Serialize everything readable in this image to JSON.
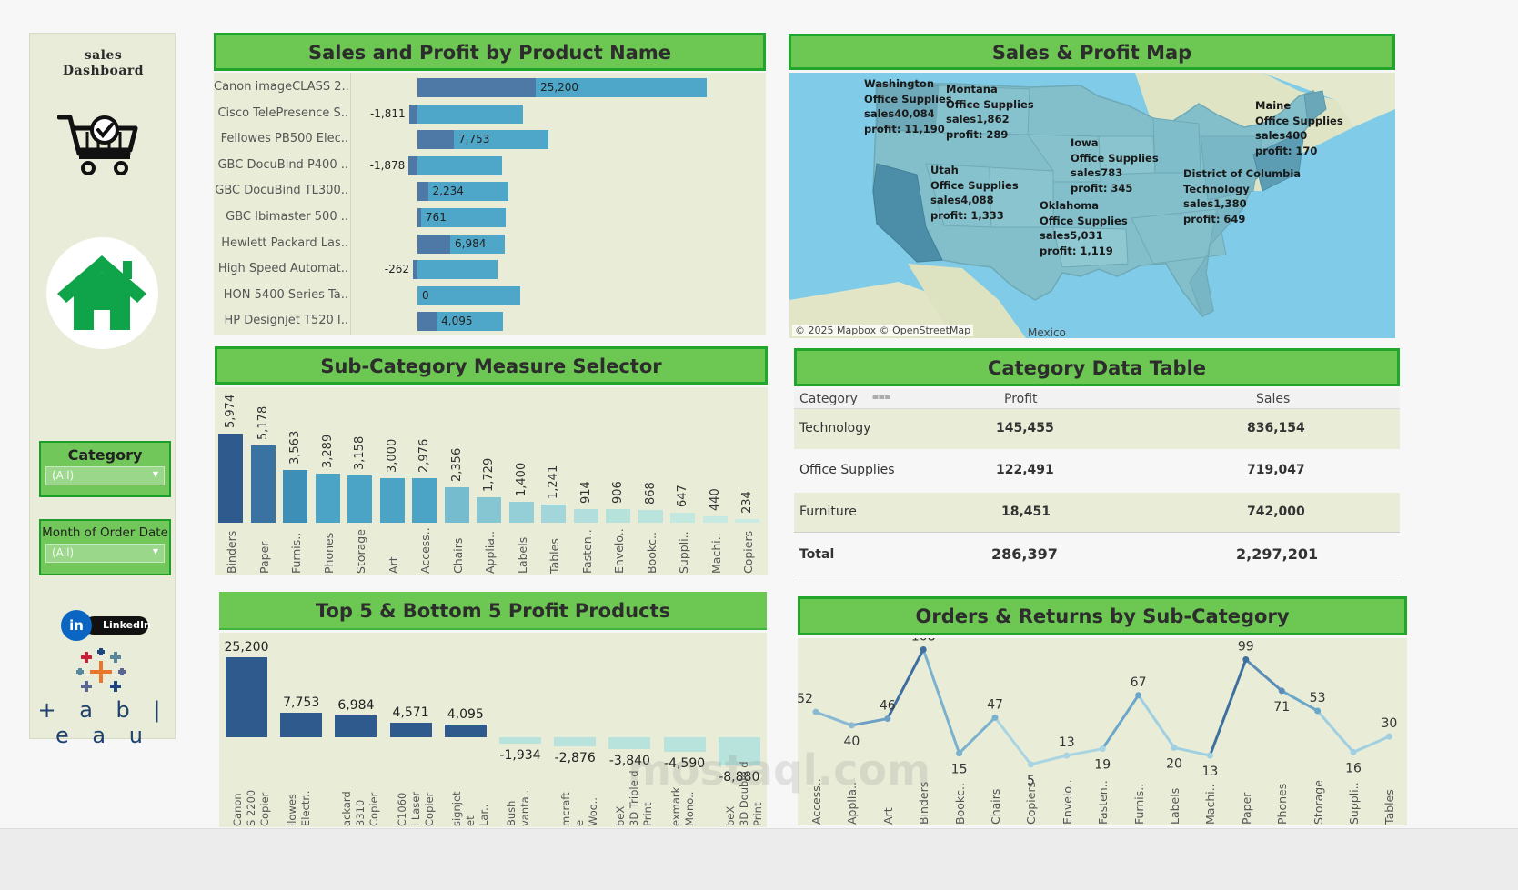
{
  "sidebar": {
    "title_line1": "sales",
    "title_line2": "Dashboard",
    "filters": [
      {
        "label": "Category",
        "value": "(All)"
      },
      {
        "label": "Month of Order Date",
        "value": "(All)"
      }
    ],
    "linkedin_icon": "in",
    "linkedin_label": "LinkedIn",
    "tableau_label": "+ a b | e a u"
  },
  "panels": {
    "sales_profit_title": "Sales and Profit by Product Name",
    "map_title": "Sales & Profit Map",
    "subcat_title": "Sub-Category Measure Selector",
    "category_table_title": "Category Data Table",
    "top_bottom_title": "Top 5 & Bottom 5 Profit Products",
    "orders_returns_title": "Orders & Returns by Sub-Category"
  },
  "colors": {
    "title_green": "#6cc852",
    "title_border": "#22a52b",
    "panel_bg": "#e9edd8",
    "bar_dark": "#2e5a8e",
    "bar_teal": "#4ea6c8",
    "bar_light": "#b6e2dc"
  },
  "chart_data": [
    {
      "type": "bar",
      "title": "Sales and Profit by Product Name",
      "categories": [
        "Canon imageCLASS 2..",
        "Cisco TelePresence S..",
        "Fellowes PB500 Elec..",
        "GBC DocuBind P400 ..",
        "GBC DocuBind TL300..",
        "GBC Ibimaster 500 ..",
        "Hewlett Packard Las..",
        "High Speed Automat..",
        "HON 5400 Series Ta..",
        "HP Designjet T520 I.."
      ],
      "series": [
        {
          "values": [
            61600,
            22500,
            27800,
            18000,
            19400,
            18700,
            18500,
            17000,
            21800,
            18300
          ]
        },
        {
          "values": [
            25200,
            -1811,
            7753,
            -1878,
            2234,
            761,
            6984,
            -262,
            0,
            4095
          ]
        }
      ],
      "labels": [
        "25,200",
        "-1,811",
        "7,753",
        "-1,878",
        "2,234",
        "761",
        "6,984",
        "-262",
        "0",
        "4,095"
      ]
    },
    {
      "type": "bar",
      "title": "Sub-Category Measure Selector",
      "categories": [
        "Binders",
        "Paper",
        "Furnis..",
        "Phones",
        "Storage",
        "Art",
        "Access..",
        "Chairs",
        "Applia..",
        "Labels",
        "Tables",
        "Fasten..",
        "Envelo..",
        "Bookc..",
        "Suppli..",
        "Machi..",
        "Copiers"
      ],
      "values": [
        5974,
        5178,
        3563,
        3289,
        3158,
        3000,
        2976,
        2356,
        1729,
        1400,
        1241,
        914,
        906,
        868,
        647,
        440,
        234
      ],
      "labels": [
        "5,974",
        "5,178",
        "3,563",
        "3,289",
        "3,158",
        "3,000",
        "2,976",
        "2,356",
        "1,729",
        "1,400",
        "1,241",
        "914",
        "906",
        "868",
        "647",
        "440",
        "234"
      ]
    },
    {
      "type": "bar",
      "title": "Top 5 & Bottom 5 Profit Products",
      "categories": [
        "Canon S 2200 Copier",
        "llowes Electr..",
        "ackard 3310 Copier",
        "C1060 l Laser Copier",
        "signjet et Lar..",
        "Bush vanta..",
        "mcraft e Woo..",
        "beX 3D Triple d Print",
        "exmark Mono..",
        "beX 3D Double d Print"
      ],
      "values": [
        25200,
        7753,
        6984,
        4571,
        4095,
        -1934,
        -2876,
        -3840,
        -4590,
        -8880
      ],
      "labels": [
        "25,200",
        "7,753",
        "6,984",
        "4,571",
        "4,095",
        "-1,934",
        "-2,876",
        "-3,840",
        "-4,590",
        "-8,880"
      ]
    },
    {
      "type": "line",
      "title": "Orders & Returns by Sub-Category",
      "categories": [
        "Access..",
        "Applia..",
        "Art",
        "Binders",
        "Bookc..",
        "Chairs",
        "Copiers",
        "Envelo..",
        "Fasten..",
        "Furnis..",
        "Labels",
        "Machi..",
        "Paper",
        "Phones",
        "Storage",
        "Suppli..",
        "Tables"
      ],
      "values": [
        52,
        40,
        46,
        108,
        15,
        47,
        5,
        13,
        19,
        67,
        20,
        13,
        99,
        71,
        53,
        16,
        30
      ],
      "ylim": [
        0,
        110
      ]
    }
  ],
  "map": {
    "credit": "© 2025 Mapbox © OpenStreetMap",
    "country_label": "Mexico",
    "labels": [
      {
        "state": "Washington",
        "category": "Office Supplies",
        "sales": "sales40,084",
        "profit": "profit: 11,190"
      },
      {
        "state": "Montana",
        "category": "Office Supplies",
        "sales": "sales1,862",
        "profit": "profit: 289"
      },
      {
        "state": "Iowa",
        "category": "Office Supplies",
        "sales": "sales783",
        "profit": "profit: 345"
      },
      {
        "state": "Maine",
        "category": "Office Supplies",
        "sales": "sales400",
        "profit": "profit: 170"
      },
      {
        "state": "Utah",
        "category": "Office Supplies",
        "sales": "sales4,088",
        "profit": "profit: 1,333"
      },
      {
        "state": "Oklahoma",
        "category": "Office Supplies",
        "sales": "sales5,031",
        "profit": "profit: 1,119"
      },
      {
        "state": "District of Columbia",
        "category": "Technology",
        "sales": "sales1,380",
        "profit": "profit: 649"
      }
    ]
  },
  "category_table": {
    "headers": [
      "Category",
      "Profit",
      "Sales"
    ],
    "rows": [
      {
        "category": "Technology",
        "profit": "145,455",
        "sales": "836,154"
      },
      {
        "category": "Office Supplies",
        "profit": "122,491",
        "sales": "719,047"
      },
      {
        "category": "Furniture",
        "profit": "18,451",
        "sales": "742,000"
      }
    ],
    "total": {
      "category": "Total",
      "profit": "286,397",
      "sales": "2,297,201"
    }
  },
  "watermark": "mostaql.com"
}
